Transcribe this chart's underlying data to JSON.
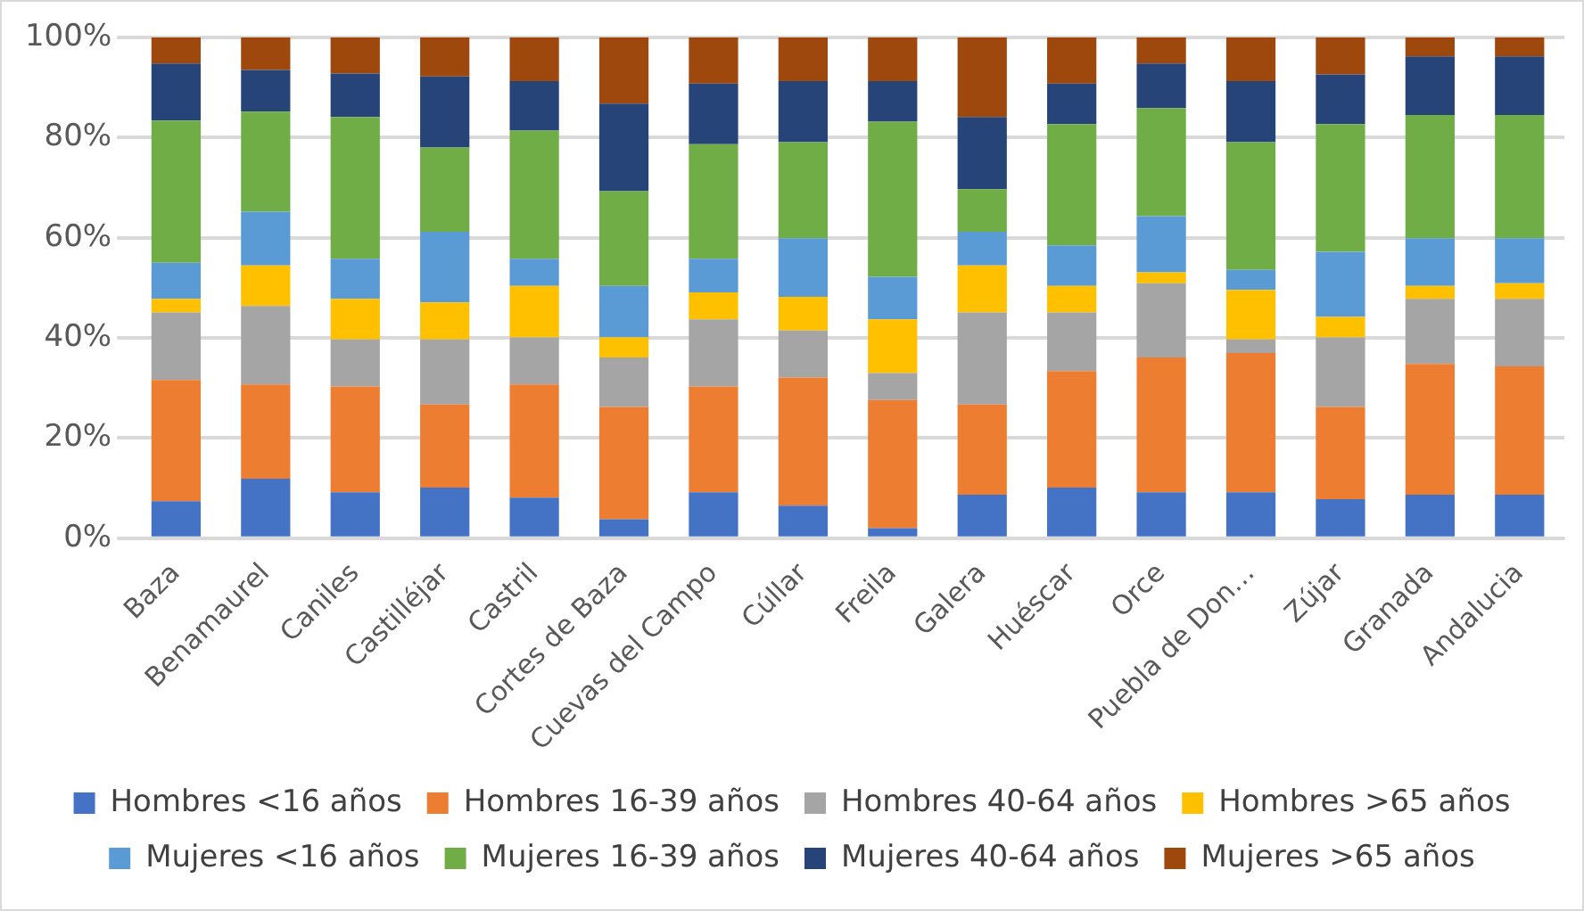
{
  "chart_data": {
    "type": "bar",
    "stacked": true,
    "categories": [
      "Baza",
      "Benamaurel",
      "Caniles",
      "Castilléjar",
      "Castril",
      "Cortes de Baza",
      "Cuevas del Campo",
      "Cúllar",
      "Freila",
      "Galera",
      "Huéscar",
      "Orce",
      "Puebla de Don…",
      "Zújar",
      "Granada",
      "Andalucia"
    ],
    "series": [
      {
        "name": "Hombres <16 años",
        "color": "#4472c4",
        "values": [
          7.4,
          11.9,
          9.2,
          10.1,
          8.1,
          3.8,
          9.2,
          6.5,
          2,
          8.7,
          10.1,
          9.2,
          9.2,
          7.8,
          8.7,
          8.7
        ]
      },
      {
        "name": "Hombres 16-39 años",
        "color": "#ed7d31",
        "values": [
          24.2,
          18.8,
          21.1,
          16.6,
          22.6,
          22.4,
          21.1,
          25.6,
          25.6,
          18,
          23.3,
          26.9,
          27.8,
          18.4,
          26.1,
          25.6
        ]
      },
      {
        "name": "Hombres 40-64 años",
        "color": "#a5a5a5",
        "values": [
          13.5,
          15.7,
          9.4,
          13,
          9.4,
          9.9,
          13.4,
          9.4,
          5.4,
          18.4,
          11.7,
          14.8,
          2.7,
          13.9,
          13,
          13.5
        ]
      },
      {
        "name": "Hombres >65 años",
        "color": "#ffc000",
        "values": [
          2.7,
          8.1,
          8.1,
          7.4,
          10.3,
          4,
          5.4,
          6.7,
          10.7,
          9.4,
          5.3,
          2.2,
          9.9,
          4.1,
          2.6,
          3.1
        ]
      },
      {
        "name": "Mujeres <16 años",
        "color": "#5b9bd5",
        "values": [
          7.2,
          10.7,
          8,
          14.1,
          5.4,
          10.3,
          6.7,
          11.7,
          8.5,
          6.7,
          8.1,
          11.2,
          4,
          13,
          9.5,
          9
        ]
      },
      {
        "name": "Mujeres 16-39 años",
        "color": "#70ad47",
        "values": [
          28.4,
          20,
          28.3,
          16.8,
          25.6,
          18.9,
          22.9,
          19.2,
          31,
          8.5,
          24.2,
          21.6,
          25.5,
          25.5,
          24.6,
          24.6
        ]
      },
      {
        "name": "Mujeres 40-64 años",
        "color": "#264478",
        "values": [
          11.4,
          8.3,
          8.7,
          14.2,
          9.9,
          17.5,
          12.1,
          12.2,
          8.1,
          14.4,
          8.1,
          8.9,
          12.2,
          9.9,
          11.7,
          11.7
        ]
      },
      {
        "name": "Mujeres >65 años",
        "color": "#9e480e",
        "values": [
          5.2,
          6.5,
          7.2,
          7.8,
          8.7,
          13.2,
          9.2,
          8.7,
          8.7,
          15.9,
          9.2,
          5.2,
          8.7,
          7.4,
          3.8,
          3.8
        ]
      }
    ],
    "ylim": [
      0,
      100
    ],
    "yticks": [
      {
        "value": 0,
        "label": "0%"
      },
      {
        "value": 20,
        "label": "20%"
      },
      {
        "value": 40,
        "label": "40%"
      },
      {
        "value": 60,
        "label": "60%"
      },
      {
        "value": 80,
        "label": "80%"
      },
      {
        "value": 100,
        "label": "100%"
      }
    ],
    "grid": "y",
    "legend": "bottom"
  }
}
